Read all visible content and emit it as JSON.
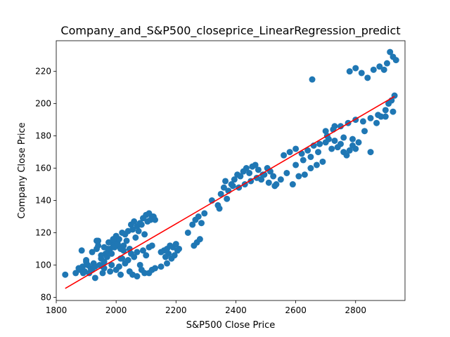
{
  "chart_data": {
    "type": "scatter",
    "title": "Company_and_S&P500_closeprice_LinearRegression_predict",
    "xlabel": "S&P500 Close Price",
    "ylabel": "Company Close Price",
    "xlim": [
      1800,
      2965
    ],
    "ylim": [
      78,
      239
    ],
    "xticks": [
      1800,
      2000,
      2200,
      2400,
      2600,
      2800
    ],
    "yticks": [
      80,
      100,
      120,
      140,
      160,
      180,
      200,
      220
    ],
    "grid": false,
    "colors": {
      "points": "#1f77b4",
      "regression_line": "#ff0000"
    },
    "series": [
      {
        "type": "scatter",
        "x": [
          1830,
          1865,
          1875,
          1880,
          1888,
          1895,
          1900,
          1905,
          1910,
          1915,
          1920,
          1925,
          1930,
          1935,
          1940,
          1945,
          1950,
          1955,
          1960,
          1965,
          1970,
          1975,
          1980,
          1985,
          1990,
          1995,
          2000,
          2005,
          2010,
          2015,
          2020,
          2025,
          2030,
          2040,
          2050,
          2060,
          2070,
          2080,
          2090,
          2100,
          2110,
          2120,
          2130,
          1885,
          1900,
          1920,
          1935,
          1950,
          1960,
          1972,
          1985,
          1995,
          2005,
          2015,
          2025,
          2035,
          2045,
          2055,
          2065,
          2075,
          2085,
          2095,
          2105,
          2115,
          2125,
          1890,
          1930,
          1955,
          1980,
          2000,
          2010,
          2020,
          2030,
          2040,
          2050,
          2060,
          2070,
          2080,
          2090,
          2100,
          2110,
          2120,
          1940,
          1960,
          1975,
          1990,
          2005,
          2015,
          2045,
          2055,
          2070,
          2085,
          2095,
          2110,
          2120,
          2130,
          2150,
          2160,
          2170,
          2180,
          2190,
          2200,
          2210,
          2165,
          2175,
          2185,
          2195,
          2205,
          2150,
          2170,
          2240,
          2255,
          2265,
          2275,
          2285,
          2295,
          2260,
          2270,
          2280,
          2320,
          2340,
          2350,
          2360,
          2365,
          2375,
          2385,
          2395,
          2405,
          2415,
          2425,
          2435,
          2445,
          2455,
          2465,
          2475,
          2485,
          2495,
          2505,
          2515,
          2525,
          2535,
          2345,
          2370,
          2390,
          2410,
          2430,
          2450,
          2470,
          2490,
          2510,
          2530,
          2550,
          2570,
          2590,
          2610,
          2630,
          2650,
          2670,
          2690,
          2560,
          2580,
          2600,
          2620,
          2640,
          2660,
          2680,
          2700,
          2710,
          2720,
          2730,
          2740,
          2750,
          2760,
          2770,
          2780,
          2790,
          2800,
          2600,
          2625,
          2650,
          2675,
          2700,
          2725,
          2750,
          2775,
          2800,
          2825,
          2850,
          2875,
          2900,
          2925,
          2655,
          2705,
          2730,
          2760,
          2790,
          2810,
          2830,
          2850,
          2870,
          2885,
          2900,
          2910,
          2920,
          2930,
          2780,
          2800,
          2820,
          2840,
          2860,
          2880,
          2895,
          2905,
          2915,
          2925,
          2935
        ],
        "y": [
          94,
          95,
          98,
          97,
          99,
          96,
          103,
          100,
          95,
          98,
          97,
          101,
          99,
          115,
          112,
          100,
          104,
          95,
          102,
          107,
          105,
          108,
          110,
          100,
          113,
          115,
          118,
          112,
          116,
          110,
          120,
          109,
          119,
          121,
          125,
          127,
          124,
          126,
          129,
          131,
          132,
          130,
          128,
          109,
          102,
          108,
          110,
          106,
          98,
          110,
          107,
          111,
          113,
          104,
          112,
          115,
          110,
          122,
          117,
          121,
          125,
          119,
          127,
          128,
          130,
          95,
          92,
          99,
          96,
          97,
          99,
          104,
          101,
          103,
          107,
          105,
          108,
          100,
          109,
          106,
          111,
          112,
          115,
          111,
          114,
          116,
          113,
          94,
          96,
          94,
          93,
          97,
          95,
          95,
          97,
          98,
          108,
          109,
          110,
          112,
          111,
          113,
          110,
          105,
          107,
          104,
          106,
          109,
          99,
          101,
          120,
          125,
          128,
          130,
          126,
          132,
          112,
          114,
          116,
          140,
          137,
          144,
          148,
          152,
          146,
          150,
          153,
          156,
          155,
          158,
          160,
          157,
          161,
          162,
          159,
          153,
          156,
          160,
          158,
          155,
          150,
          135,
          141,
          149,
          148,
          150,
          152,
          154,
          156,
          151,
          149,
          153,
          157,
          150,
          155,
          156,
          160,
          162,
          164,
          168,
          170,
          172,
          169,
          171,
          174,
          175,
          176,
          178,
          172,
          177,
          173,
          175,
          170,
          168,
          171,
          174,
          172,
          162,
          165,
          167,
          170,
          183,
          184,
          186,
          188,
          190,
          189,
          191,
          193,
          192,
          195,
          215,
          180,
          186,
          179,
          178,
          176,
          183,
          170,
          188,
          192,
          196,
          200,
          202,
          205,
          220,
          222,
          219,
          216,
          221,
          223,
          221,
          225,
          232,
          229,
          227
        ]
      },
      {
        "type": "line",
        "x": [
          1830,
          2930
        ],
        "y": [
          85.5,
          204.5
        ]
      }
    ]
  }
}
